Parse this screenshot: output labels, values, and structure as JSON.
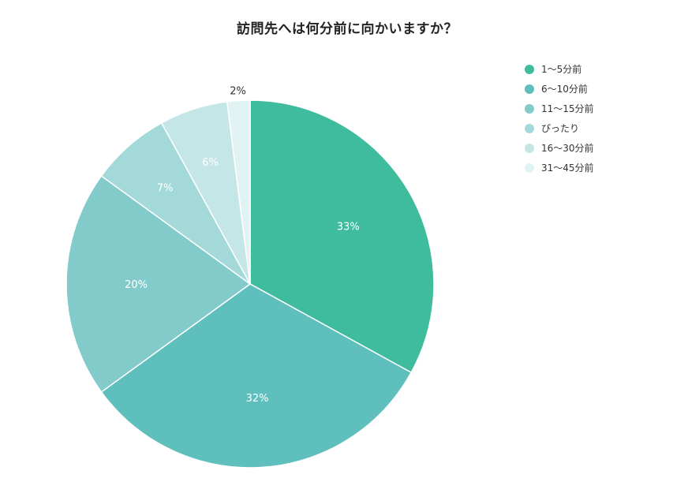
{
  "chart_data": {
    "type": "pie",
    "title": "訪問先へは何分前に向かいますか？",
    "legend_position": "top-right",
    "slices": [
      {
        "label": "1〜5分前",
        "value": 33,
        "value_label": "33%",
        "color": "#3fbc9e"
      },
      {
        "label": "6〜10分前",
        "value": 32,
        "value_label": "32%",
        "color": "#5fbfbd"
      },
      {
        "label": "11〜15分前",
        "value": 20,
        "value_label": "20%",
        "color": "#83cbcb"
      },
      {
        "label": "ぴったり",
        "value": 7,
        "value_label": "7%",
        "color": "#a4d9d9"
      },
      {
        "label": "16〜30分前",
        "value": 6,
        "value_label": "6%",
        "color": "#c4e6e6"
      },
      {
        "label": "31〜45分前",
        "value": 2,
        "value_label": "2%",
        "color": "#e2f3f3"
      }
    ]
  }
}
